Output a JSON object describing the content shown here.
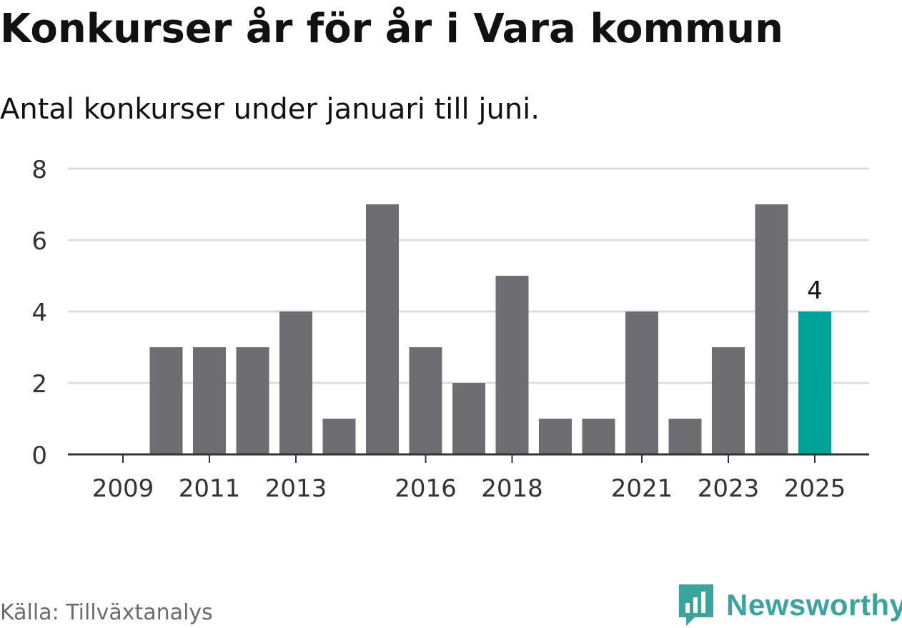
{
  "title": "Konkurser år för år i Vara kommun",
  "subtitle": "Antal konkurser under januari till juni.",
  "source": "Källa: Tillväxtanalys",
  "brand": {
    "name": "Newsworthy",
    "icon": "newsworthy-logo-icon",
    "color": "#3aa59d"
  },
  "chart_data": {
    "type": "bar",
    "categories": [
      "2009",
      "2010",
      "2011",
      "2012",
      "2013",
      "2014",
      "2015",
      "2016",
      "2017",
      "2018",
      "2019",
      "2020",
      "2021",
      "2022",
      "2023",
      "2024",
      "2025"
    ],
    "values": [
      0,
      3,
      3,
      3,
      4,
      1,
      7,
      3,
      2,
      5,
      1,
      1,
      4,
      1,
      3,
      7,
      4
    ],
    "x_tick_labels": [
      "2009",
      "2011",
      "2013",
      "2016",
      "2018",
      "2021",
      "2023",
      "2025"
    ],
    "y_ticks": [
      0,
      2,
      4,
      6,
      8
    ],
    "ylim": [
      0,
      8
    ],
    "grid": true,
    "highlight": {
      "category": "2025",
      "label": "4",
      "color": "#00a39a"
    },
    "bar_color": "#6e6d72",
    "gridline_color": "#dddddd",
    "axis_color": "#333333"
  }
}
